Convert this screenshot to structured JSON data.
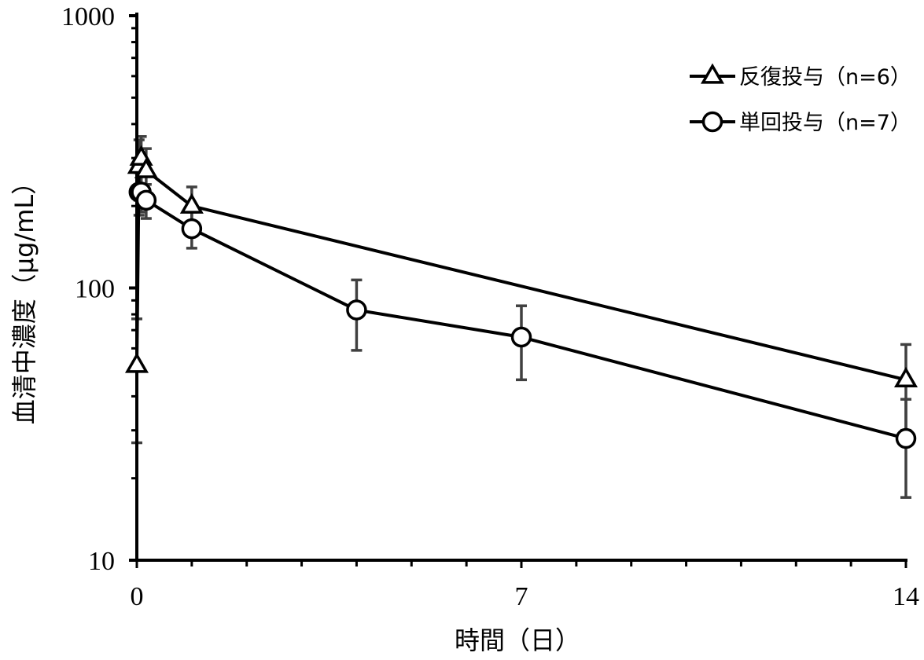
{
  "chart_data": {
    "type": "line",
    "xlabel": "時間（日）",
    "ylabel": "血清中濃度（μg/mL）",
    "x_ticks": [
      0,
      7,
      14
    ],
    "x_tick_labels": [
      "0",
      "7",
      "14"
    ],
    "xlim": [
      0,
      14
    ],
    "y_scale": "log",
    "ylim": [
      10,
      1000
    ],
    "y_ticks": [
      10,
      100,
      1000
    ],
    "y_tick_labels": [
      "10",
      "100",
      "1000"
    ],
    "grid": false,
    "legend_position": "top-right",
    "series": [
      {
        "name": "反復投与（n=6）",
        "marker": "triangle",
        "color": "#000000",
        "points": [
          {
            "x": 0,
            "y": 52,
            "err": 25
          },
          {
            "x": 0.04,
            "y": 280,
            "err": 70
          },
          {
            "x": 0.08,
            "y": 300,
            "err": 60
          },
          {
            "x": 0.17,
            "y": 270,
            "err": 55
          },
          {
            "x": 1,
            "y": 200,
            "err": 35
          },
          {
            "x": 14,
            "y": 46,
            "err": 16
          }
        ]
      },
      {
        "name": "単回投与（n=7）",
        "marker": "circle",
        "color": "#000000",
        "points": [
          {
            "x": 0.04,
            "y": 225,
            "err": 40
          },
          {
            "x": 0.08,
            "y": 225,
            "err": 35
          },
          {
            "x": 0.17,
            "y": 210,
            "err": 30
          },
          {
            "x": 1,
            "y": 165,
            "err": 25
          },
          {
            "x": 4,
            "y": 83,
            "err": 24
          },
          {
            "x": 7,
            "y": 66,
            "err": 20
          },
          {
            "x": 14,
            "y": 28,
            "err": 11
          }
        ]
      }
    ]
  }
}
